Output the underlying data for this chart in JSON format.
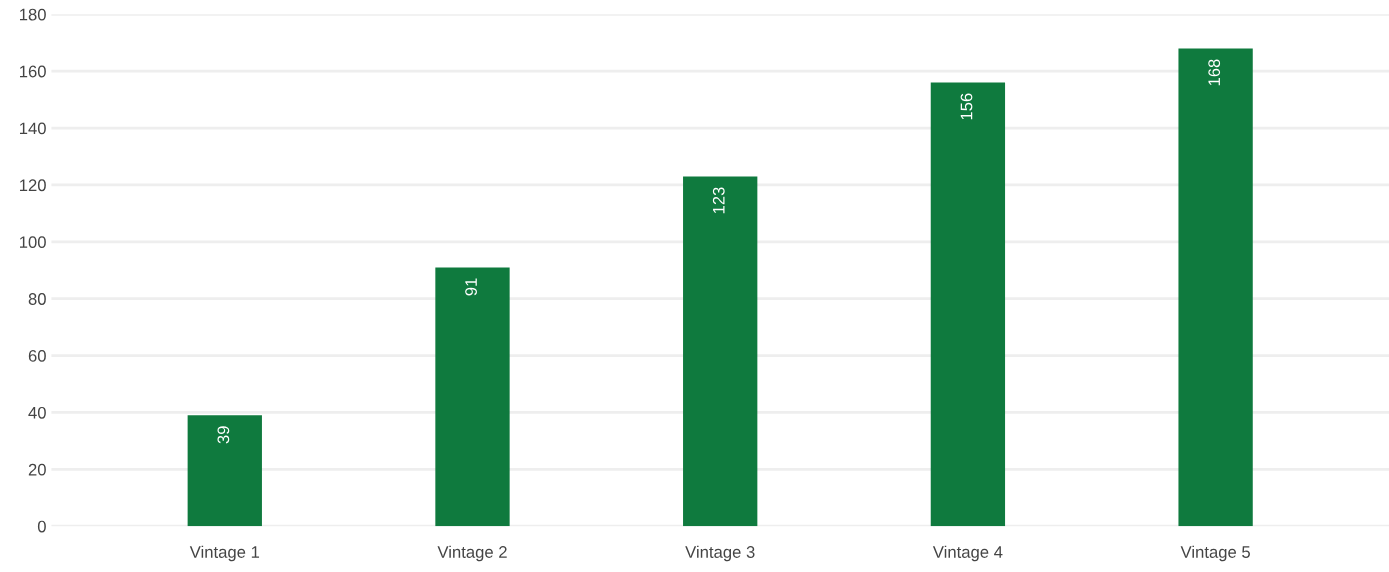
{
  "chart_data": {
    "type": "bar",
    "categories": [
      "Vintage 1",
      "Vintage 2",
      "Vintage 3",
      "Vintage 4",
      "Vintage 5"
    ],
    "values": [
      39,
      91,
      123,
      156,
      168
    ],
    "color": "#0f7a3e",
    "ylim": [
      0,
      180
    ],
    "yticks": [
      0,
      20,
      40,
      60,
      80,
      100,
      120,
      140,
      160,
      180
    ],
    "grid": "y",
    "data_labels": true
  }
}
